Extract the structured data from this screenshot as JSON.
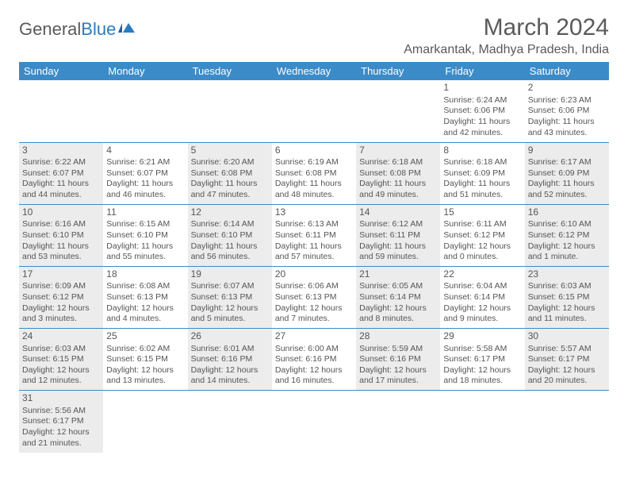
{
  "logo": {
    "text1": "General",
    "text2": "Blue"
  },
  "title": "March 2024",
  "location": "Amarkantak, Madhya Pradesh, India",
  "colors": {
    "header_bg": "#3b8bc9",
    "header_text": "#ffffff",
    "cell_border": "#3b8bc9",
    "shaded_bg": "#ececec",
    "text": "#555555",
    "logo_blue": "#2b7bbf"
  },
  "day_headers": [
    "Sunday",
    "Monday",
    "Tuesday",
    "Wednesday",
    "Thursday",
    "Friday",
    "Saturday"
  ],
  "weeks": [
    [
      {
        "empty": true
      },
      {
        "empty": true
      },
      {
        "empty": true
      },
      {
        "empty": true
      },
      {
        "empty": true
      },
      {
        "day": "1",
        "sunrise": "Sunrise: 6:24 AM",
        "sunset": "Sunset: 6:06 PM",
        "daylight1": "Daylight: 11 hours",
        "daylight2": "and 42 minutes."
      },
      {
        "day": "2",
        "sunrise": "Sunrise: 6:23 AM",
        "sunset": "Sunset: 6:06 PM",
        "daylight1": "Daylight: 11 hours",
        "daylight2": "and 43 minutes."
      }
    ],
    [
      {
        "day": "3",
        "shaded": true,
        "sunrise": "Sunrise: 6:22 AM",
        "sunset": "Sunset: 6:07 PM",
        "daylight1": "Daylight: 11 hours",
        "daylight2": "and 44 minutes."
      },
      {
        "day": "4",
        "sunrise": "Sunrise: 6:21 AM",
        "sunset": "Sunset: 6:07 PM",
        "daylight1": "Daylight: 11 hours",
        "daylight2": "and 46 minutes."
      },
      {
        "day": "5",
        "shaded": true,
        "sunrise": "Sunrise: 6:20 AM",
        "sunset": "Sunset: 6:08 PM",
        "daylight1": "Daylight: 11 hours",
        "daylight2": "and 47 minutes."
      },
      {
        "day": "6",
        "sunrise": "Sunrise: 6:19 AM",
        "sunset": "Sunset: 6:08 PM",
        "daylight1": "Daylight: 11 hours",
        "daylight2": "and 48 minutes."
      },
      {
        "day": "7",
        "shaded": true,
        "sunrise": "Sunrise: 6:18 AM",
        "sunset": "Sunset: 6:08 PM",
        "daylight1": "Daylight: 11 hours",
        "daylight2": "and 49 minutes."
      },
      {
        "day": "8",
        "sunrise": "Sunrise: 6:18 AM",
        "sunset": "Sunset: 6:09 PM",
        "daylight1": "Daylight: 11 hours",
        "daylight2": "and 51 minutes."
      },
      {
        "day": "9",
        "shaded": true,
        "sunrise": "Sunrise: 6:17 AM",
        "sunset": "Sunset: 6:09 PM",
        "daylight1": "Daylight: 11 hours",
        "daylight2": "and 52 minutes."
      }
    ],
    [
      {
        "day": "10",
        "shaded": true,
        "sunrise": "Sunrise: 6:16 AM",
        "sunset": "Sunset: 6:10 PM",
        "daylight1": "Daylight: 11 hours",
        "daylight2": "and 53 minutes."
      },
      {
        "day": "11",
        "sunrise": "Sunrise: 6:15 AM",
        "sunset": "Sunset: 6:10 PM",
        "daylight1": "Daylight: 11 hours",
        "daylight2": "and 55 minutes."
      },
      {
        "day": "12",
        "shaded": true,
        "sunrise": "Sunrise: 6:14 AM",
        "sunset": "Sunset: 6:10 PM",
        "daylight1": "Daylight: 11 hours",
        "daylight2": "and 56 minutes."
      },
      {
        "day": "13",
        "sunrise": "Sunrise: 6:13 AM",
        "sunset": "Sunset: 6:11 PM",
        "daylight1": "Daylight: 11 hours",
        "daylight2": "and 57 minutes."
      },
      {
        "day": "14",
        "shaded": true,
        "sunrise": "Sunrise: 6:12 AM",
        "sunset": "Sunset: 6:11 PM",
        "daylight1": "Daylight: 11 hours",
        "daylight2": "and 59 minutes."
      },
      {
        "day": "15",
        "sunrise": "Sunrise: 6:11 AM",
        "sunset": "Sunset: 6:12 PM",
        "daylight1": "Daylight: 12 hours",
        "daylight2": "and 0 minutes."
      },
      {
        "day": "16",
        "shaded": true,
        "sunrise": "Sunrise: 6:10 AM",
        "sunset": "Sunset: 6:12 PM",
        "daylight1": "Daylight: 12 hours",
        "daylight2": "and 1 minute."
      }
    ],
    [
      {
        "day": "17",
        "shaded": true,
        "sunrise": "Sunrise: 6:09 AM",
        "sunset": "Sunset: 6:12 PM",
        "daylight1": "Daylight: 12 hours",
        "daylight2": "and 3 minutes."
      },
      {
        "day": "18",
        "sunrise": "Sunrise: 6:08 AM",
        "sunset": "Sunset: 6:13 PM",
        "daylight1": "Daylight: 12 hours",
        "daylight2": "and 4 minutes."
      },
      {
        "day": "19",
        "shaded": true,
        "sunrise": "Sunrise: 6:07 AM",
        "sunset": "Sunset: 6:13 PM",
        "daylight1": "Daylight: 12 hours",
        "daylight2": "and 5 minutes."
      },
      {
        "day": "20",
        "sunrise": "Sunrise: 6:06 AM",
        "sunset": "Sunset: 6:13 PM",
        "daylight1": "Daylight: 12 hours",
        "daylight2": "and 7 minutes."
      },
      {
        "day": "21",
        "shaded": true,
        "sunrise": "Sunrise: 6:05 AM",
        "sunset": "Sunset: 6:14 PM",
        "daylight1": "Daylight: 12 hours",
        "daylight2": "and 8 minutes."
      },
      {
        "day": "22",
        "sunrise": "Sunrise: 6:04 AM",
        "sunset": "Sunset: 6:14 PM",
        "daylight1": "Daylight: 12 hours",
        "daylight2": "and 9 minutes."
      },
      {
        "day": "23",
        "shaded": true,
        "sunrise": "Sunrise: 6:03 AM",
        "sunset": "Sunset: 6:15 PM",
        "daylight1": "Daylight: 12 hours",
        "daylight2": "and 11 minutes."
      }
    ],
    [
      {
        "day": "24",
        "shaded": true,
        "sunrise": "Sunrise: 6:03 AM",
        "sunset": "Sunset: 6:15 PM",
        "daylight1": "Daylight: 12 hours",
        "daylight2": "and 12 minutes."
      },
      {
        "day": "25",
        "sunrise": "Sunrise: 6:02 AM",
        "sunset": "Sunset: 6:15 PM",
        "daylight1": "Daylight: 12 hours",
        "daylight2": "and 13 minutes."
      },
      {
        "day": "26",
        "shaded": true,
        "sunrise": "Sunrise: 6:01 AM",
        "sunset": "Sunset: 6:16 PM",
        "daylight1": "Daylight: 12 hours",
        "daylight2": "and 14 minutes."
      },
      {
        "day": "27",
        "sunrise": "Sunrise: 6:00 AM",
        "sunset": "Sunset: 6:16 PM",
        "daylight1": "Daylight: 12 hours",
        "daylight2": "and 16 minutes."
      },
      {
        "day": "28",
        "shaded": true,
        "sunrise": "Sunrise: 5:59 AM",
        "sunset": "Sunset: 6:16 PM",
        "daylight1": "Daylight: 12 hours",
        "daylight2": "and 17 minutes."
      },
      {
        "day": "29",
        "sunrise": "Sunrise: 5:58 AM",
        "sunset": "Sunset: 6:17 PM",
        "daylight1": "Daylight: 12 hours",
        "daylight2": "and 18 minutes."
      },
      {
        "day": "30",
        "shaded": true,
        "sunrise": "Sunrise: 5:57 AM",
        "sunset": "Sunset: 6:17 PM",
        "daylight1": "Daylight: 12 hours",
        "daylight2": "and 20 minutes."
      }
    ],
    [
      {
        "day": "31",
        "shaded": true,
        "sunrise": "Sunrise: 5:56 AM",
        "sunset": "Sunset: 6:17 PM",
        "daylight1": "Daylight: 12 hours",
        "daylight2": "and 21 minutes."
      },
      {
        "empty": true
      },
      {
        "empty": true
      },
      {
        "empty": true
      },
      {
        "empty": true
      },
      {
        "empty": true
      },
      {
        "empty": true
      }
    ]
  ]
}
